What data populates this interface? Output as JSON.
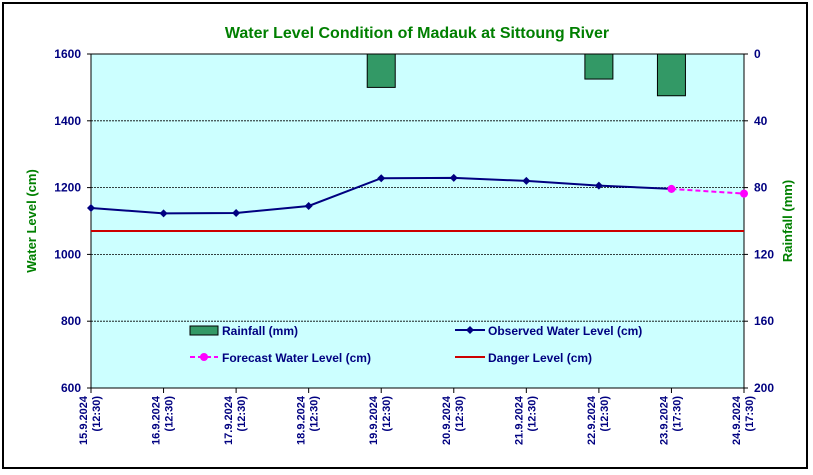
{
  "chart_data": {
    "type": "line",
    "title": "Water Level Condition of Madauk at Sittoung River",
    "ylabel": "Water Level (cm)",
    "y2label": "Rainfall (mm)",
    "ylim": [
      600,
      1600
    ],
    "y2lim": [
      200,
      0
    ],
    "y2_reversed": true,
    "yticks": [
      "1600",
      "1400",
      "1200",
      "1000",
      "800",
      "600"
    ],
    "y2ticks": [
      "0",
      "40",
      "80",
      "120",
      "160",
      "200"
    ],
    "grid": true,
    "categories": [
      "15.9.2024 (12:30)",
      "16.9.2024 (12:30)",
      "17.9.2024 (12:30)",
      "18.9.2024 (12:30)",
      "19.9.2024 (12:30)",
      "20.9.2024 (12:30)",
      "21.9.2024 (12:30)",
      "22.9.2024 (12:30)",
      "23.9.2024 (17:30)",
      "24.9.2024 (17:30)"
    ],
    "rainfall": [
      null,
      null,
      null,
      null,
      20,
      null,
      null,
      15,
      25,
      null
    ],
    "observed": [
      1139,
      1123,
      1124,
      1145,
      1228,
      1229,
      1220,
      1206,
      1196,
      null
    ],
    "forecast": [
      null,
      null,
      null,
      null,
      null,
      null,
      null,
      null,
      1196,
      1182
    ],
    "danger_level": 1070,
    "legend": {
      "rainfall": "Rainfall (mm)",
      "observed": "Observed Water Level (cm)",
      "forecast": "Forecast Water Level (cm)",
      "danger": "Danger Level (cm)"
    },
    "colors": {
      "title": "#007F00",
      "axis_title": "#008000",
      "tick": "#000080",
      "plot_bg": "#CCFFFF",
      "rainfall": "#339966",
      "observed": "#000080",
      "forecast": "#FF00FF",
      "danger": "#CC0000"
    }
  }
}
